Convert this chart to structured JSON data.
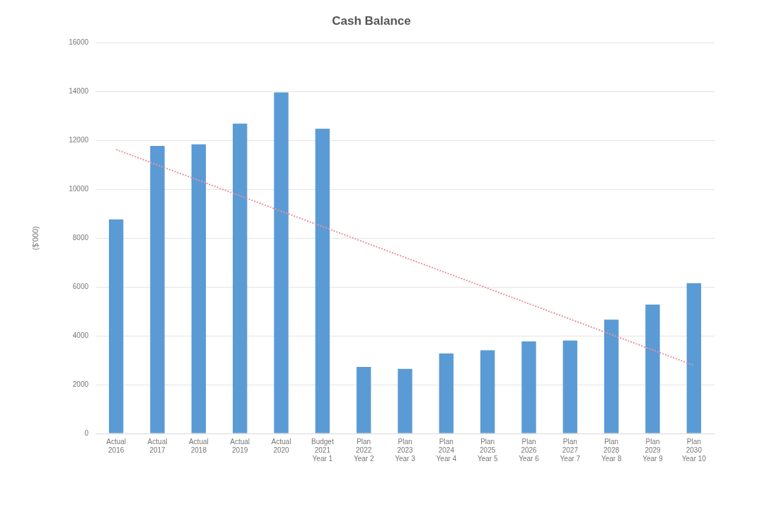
{
  "chart_data": {
    "type": "bar",
    "title": "Cash Balance",
    "ylabel": "($'000)",
    "categories": [
      "Actual\n2016",
      "Actual\n2017",
      "Actual\n2018",
      "Actual\n2019",
      "Actual\n2020",
      "Budget\n2021\nYear 1",
      "Plan\n2022\nYear 2",
      "Plan\n2023\nYear 3",
      "Plan\n2024\nYear 4",
      "Plan\n2025\nYear 5",
      "Plan\n2026\nYear 6",
      "Plan\n2027\nYear 7",
      "Plan\n2028\nYear 8",
      "Plan\n2029\nYear 9",
      "Plan\n2030\nYear 10"
    ],
    "series": [
      {
        "color": "#5b9bd5",
        "values": [
          8770,
          11780,
          11840,
          12690,
          13970,
          12480,
          2730,
          2650,
          3280,
          3410,
          3770,
          3810,
          4660,
          5280,
          6160
        ]
      },
      {
        "type": "line",
        "color": "#e8939c",
        "line_style": "dotted",
        "marker": "none",
        "values": [
          11630,
          null,
          null,
          null,
          null,
          null,
          null,
          null,
          null,
          null,
          null,
          null,
          null,
          null,
          2790
        ]
      }
    ],
    "ylim": [
      0,
      16000
    ],
    "yticks": [
      0,
      2000,
      4000,
      6000,
      8000,
      10000,
      12000,
      14000,
      16000
    ],
    "grid": "y",
    "legend": false
  }
}
